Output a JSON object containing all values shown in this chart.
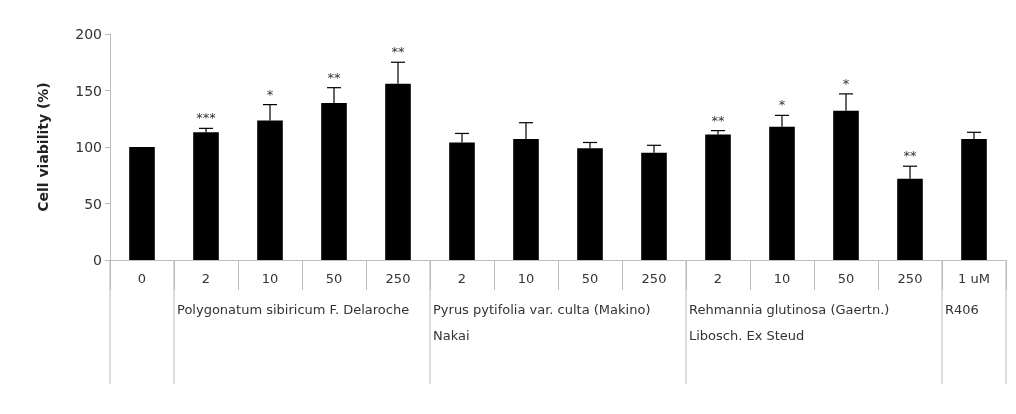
{
  "chart_data": {
    "type": "bar",
    "ylabel": "Cell viability (%)",
    "categories": [
      "0",
      "2",
      "10",
      "50",
      "250",
      "2",
      "10",
      "50",
      "250",
      "2",
      "10",
      "50",
      "250",
      "1 uM"
    ],
    "values": [
      100,
      113,
      123.5,
      139,
      156,
      104,
      107,
      99,
      95,
      111,
      118,
      132,
      72,
      107
    ],
    "errors": [
      null,
      3.5,
      14,
      13.5,
      19,
      8,
      14.5,
      5,
      6.5,
      3.5,
      10,
      15,
      11,
      6
    ],
    "value_labels": [
      null,
      "***",
      "*",
      "**",
      "**",
      null,
      null,
      null,
      null,
      "**",
      "*",
      "*",
      "**",
      null
    ],
    "color": "#000000",
    "annotations": [
      "Polygonatum sibiricum F. Delaroche",
      "Pyrus pytifolia var. culta (Makino) Nakai",
      "Rehmannia glutinosa (Gaertn.) Libosch. Ex Steud",
      "R406"
    ],
    "ylim": [
      0,
      200
    ],
    "yticks": [
      0,
      50,
      100,
      150,
      200
    ],
    "grid": false
  }
}
